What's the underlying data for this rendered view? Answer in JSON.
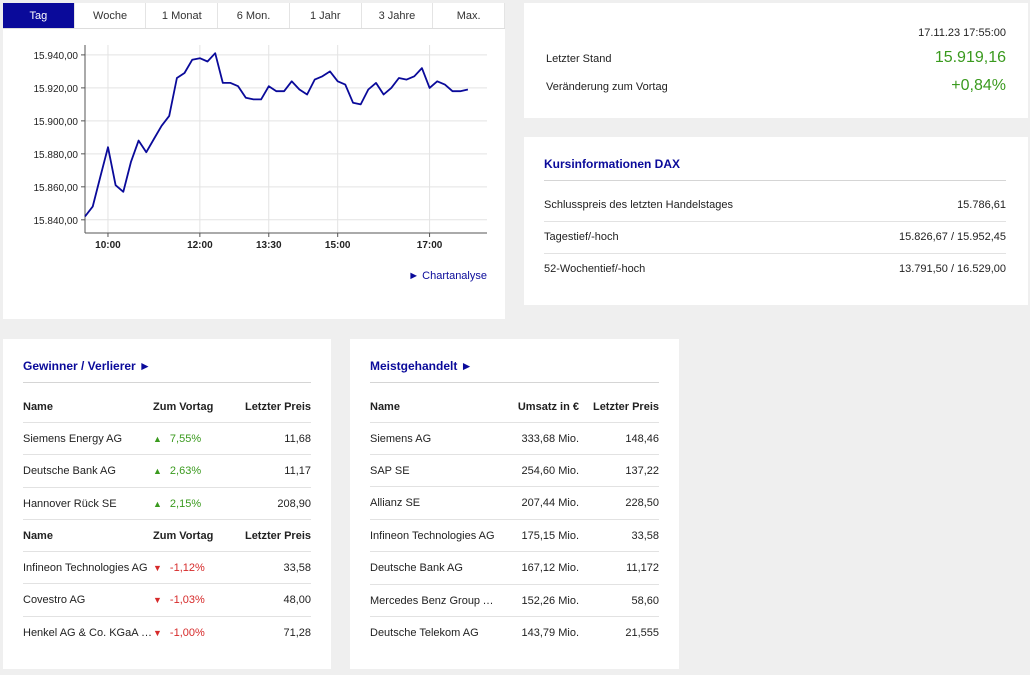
{
  "tabs": [
    "Tag",
    "Woche",
    "1 Monat",
    "6 Mon.",
    "1 Jahr",
    "3 Jahre",
    "Max."
  ],
  "active_tab": 0,
  "chart_link": "► Chartanalyse",
  "chart_data": {
    "type": "line",
    "series": [
      {
        "x": [
          "09:30",
          "09:40",
          "09:50",
          "10:00",
          "10:10",
          "10:20",
          "10:30",
          "10:40",
          "10:50",
          "11:00",
          "11:10",
          "11:20",
          "11:30",
          "11:40",
          "11:50",
          "12:00",
          "12:10",
          "12:20",
          "12:30",
          "12:40",
          "12:50",
          "13:00",
          "13:10",
          "13:20",
          "13:30",
          "13:40",
          "13:50",
          "14:00",
          "14:10",
          "14:20",
          "14:30",
          "14:40",
          "14:50",
          "15:00",
          "15:10",
          "15:20",
          "15:30",
          "15:40",
          "15:50",
          "16:00",
          "16:10",
          "16:20",
          "16:30",
          "16:40",
          "16:50",
          "17:00",
          "17:10",
          "17:20",
          "17:30",
          "17:40",
          "17:50"
        ],
        "values": [
          15842,
          15848,
          15866,
          15884,
          15861,
          15857,
          15875,
          15888,
          15881,
          15889,
          15897,
          15903,
          15926,
          15929,
          15937,
          15938,
          15936,
          15941,
          15923,
          15923,
          15921,
          15914,
          15913,
          15913,
          15921,
          15918,
          15918,
          15924,
          15919,
          15916,
          15925,
          15927,
          15930,
          15924,
          15922,
          15911,
          15910,
          15919,
          15923,
          15916,
          15920,
          15926,
          15925,
          15927,
          15932,
          15920,
          15924,
          15922,
          15918,
          15918,
          15919
        ]
      }
    ],
    "yticks": [
      "15.840,00",
      "15.860,00",
      "15.880,00",
      "15.900,00",
      "15.920,00",
      "15.940,00"
    ],
    "ytick_values": [
      15840,
      15860,
      15880,
      15900,
      15920,
      15940
    ],
    "xticks": [
      "10:00",
      "12:00",
      "13:30",
      "15:00",
      "17:00"
    ],
    "ylim": [
      15832,
      15946
    ],
    "grid": true
  },
  "quote": {
    "date": "17.11.23 17:55:00",
    "last_label": "Letzter Stand",
    "last_value": "15.919,16",
    "change_label": "Veränderung zum Vortag",
    "change_value": "+0,84%",
    "positive_color": "#3a9a1e"
  },
  "info": {
    "title": "Kursinformationen DAX",
    "rows": [
      {
        "label": "Schlusspreis des letzten Handelstages",
        "value": "15.786,61"
      },
      {
        "label": "Tagestief/-hoch",
        "value": "15.826,67 / 15.952,45"
      },
      {
        "label": "52-Wochentief/-hoch",
        "value": "13.791,50 / 16.529,00"
      }
    ]
  },
  "winners": {
    "title": "Gewinner / Verlierer ►",
    "header": [
      "Name",
      "Zum Vortag",
      "Letzter Preis"
    ],
    "gainers": [
      {
        "name": "Siemens Energy AG",
        "change": "7,55%",
        "price": "11,68"
      },
      {
        "name": "Deutsche Bank AG",
        "change": "2,63%",
        "price": "11,17"
      },
      {
        "name": "Hannover Rück SE",
        "change": "2,15%",
        "price": "208,90"
      }
    ],
    "losers": [
      {
        "name": "Infineon Technologies AG",
        "change": "-1,12%",
        "price": "33,58"
      },
      {
        "name": "Covestro AG",
        "change": "-1,03%",
        "price": "48,00"
      },
      {
        "name": "Henkel AG & Co. KGaA Vz",
        "change": "-1,00%",
        "price": "71,28"
      }
    ]
  },
  "most_traded": {
    "title": "Meistgehandelt ►",
    "header": [
      "Name",
      "Umsatz in €",
      "Letzter Preis"
    ],
    "rows": [
      {
        "name": "Siemens AG",
        "turnover": "333,68 Mio.",
        "price": "148,46"
      },
      {
        "name": "SAP SE",
        "turnover": "254,60 Mio.",
        "price": "137,22"
      },
      {
        "name": "Allianz SE",
        "turnover": "207,44 Mio.",
        "price": "228,50"
      },
      {
        "name": "Infineon Technologies AG",
        "turnover": "175,15 Mio.",
        "price": "33,58"
      },
      {
        "name": "Deutsche Bank AG",
        "turnover": "167,12 Mio.",
        "price": "11,172"
      },
      {
        "name": "Mercedes Benz Group AG ...",
        "turnover": "152,26 Mio.",
        "price": "58,60"
      },
      {
        "name": "Deutsche Telekom AG",
        "turnover": "143,79 Mio.",
        "price": "21,555"
      }
    ]
  }
}
